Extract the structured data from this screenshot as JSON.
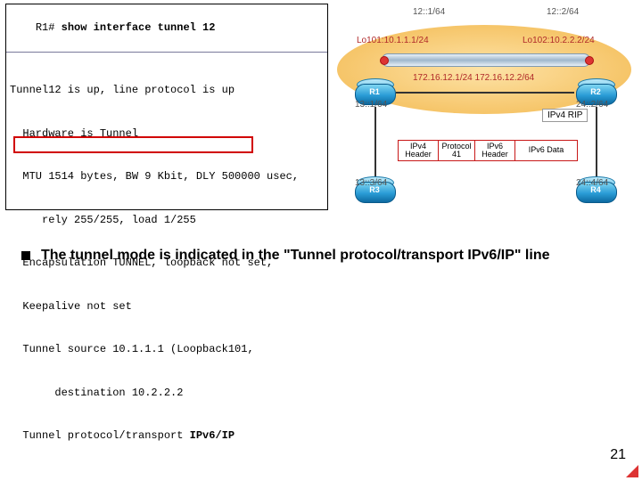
{
  "terminal": {
    "prompt": "R1# ",
    "command": "show interface tunnel 12",
    "lines": [
      "Tunnel12 is up, line protocol is up",
      "  Hardware is Tunnel",
      "  MTU 1514 bytes, BW 9 Kbit, DLY 500000 usec,",
      "     rely 255/255, load 1/255",
      "  Encapsulation TUNNEL, loopback not set,",
      "  Keepalive not set",
      "  Tunnel source 10.1.1.1 (Loopback101,",
      "       destination 10.2.2.2",
      "  Tunnel protocol/transport "
    ],
    "highlight_tail": "IPv6/IP"
  },
  "diagram": {
    "tun_left": "12::1/64",
    "tun_right": "12::2/64",
    "lo_left": "Lo101:10.1.1.1/24",
    "lo_right": "Lo102:10.2.2.2/24",
    "link_mid": "172.16.12.1/24    172.16.12.2/64",
    "r1_lan": "13::1/64",
    "r2_lan": "24::2/64",
    "r3_addr": "13::3/64",
    "r4_addr": "24::4/64",
    "rip": "IPv4 RIP",
    "routers": {
      "r1": "R1",
      "r2": "R2",
      "r3": "R3",
      "r4": "R4"
    },
    "packet": {
      "f1": "IPv4\nHeader",
      "f2": "Protocol\n41",
      "f3": "IPv6\nHeader",
      "f4": "IPv6 Data"
    }
  },
  "bullet": "The tunnel mode is indicated in the \"Tunnel protocol/transport IPv6/IP\" line",
  "page": "21"
}
